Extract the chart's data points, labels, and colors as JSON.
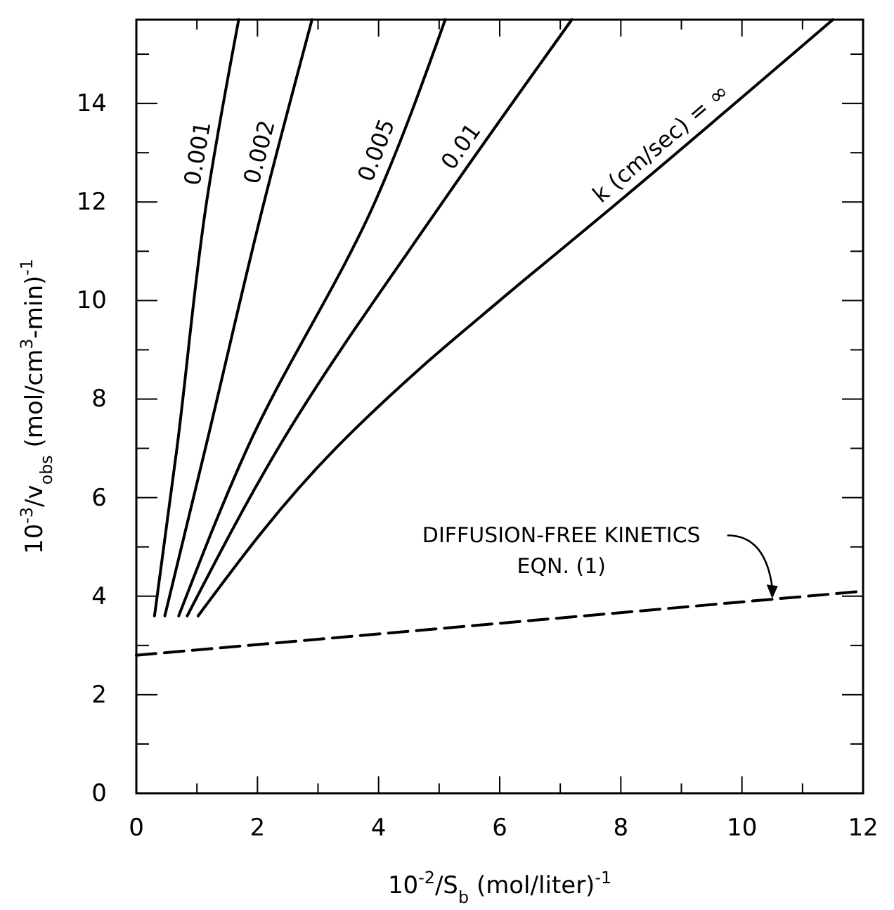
{
  "chart_data": {
    "type": "line",
    "xlabel": "10$^{-2}$/S$_{b}$ (mol/liter)$^{-1}$",
    "ylabel": "10$^{-3}$/v$_{obs}$ (mol/cm$^{3}$-min)$^{-1}$",
    "xlim": [
      0,
      12
    ],
    "ylim": [
      0,
      15.7
    ],
    "xticks": [
      0,
      {
        "value": 1,
        "label": null
      },
      2,
      {
        "value": 3,
        "label": null
      },
      4,
      {
        "value": 5,
        "label": null
      },
      6,
      {
        "value": 7,
        "label": null
      },
      8,
      {
        "value": 9,
        "label": null
      },
      10,
      {
        "value": 11,
        "label": null
      },
      12
    ],
    "yticks": [
      0,
      {
        "value": 1,
        "label": null
      },
      2,
      {
        "value": 3,
        "label": null
      },
      4,
      {
        "value": 5,
        "label": null
      },
      6,
      {
        "value": 7,
        "label": null
      },
      8,
      {
        "value": 9,
        "label": null
      },
      10,
      {
        "value": 11,
        "label": null
      },
      12,
      {
        "value": 13,
        "label": null
      },
      14,
      {
        "value": 15,
        "label": null
      }
    ],
    "grid": false,
    "marker": "none",
    "series": [
      {
        "name": "0.001",
        "color": "#000000",
        "line_style": "solid",
        "x": [
          0.3,
          0.67,
          1.16,
          1.69
        ],
        "values": [
          3.6,
          7,
          12,
          15.7
        ]
      },
      {
        "name": "0.002",
        "color": "#000000",
        "line_style": "solid",
        "x": [
          0.47,
          1.14,
          2.11,
          2.9
        ],
        "values": [
          3.6,
          7,
          12,
          15.7
        ]
      },
      {
        "name": "0.005",
        "color": "#000000",
        "line_style": "solid",
        "x": [
          0.7,
          1.83,
          3.94,
          5.1
        ],
        "values": [
          3.6,
          7,
          12,
          15.7
        ]
      },
      {
        "name": "0.01",
        "color": "#000000",
        "line_style": "solid",
        "x": [
          0.84,
          2.34,
          5.06,
          7.19
        ],
        "values": [
          3.6,
          7,
          12,
          15.7
        ]
      },
      {
        "name": "k (cm/sec) = ∞",
        "color": "#000000",
        "line_style": "solid",
        "x": [
          1.02,
          3.29,
          4.71,
          6.0,
          7.96,
          11.5
        ],
        "values": [
          3.6,
          7,
          8.65,
          10,
          12,
          15.7
        ]
      },
      {
        "color": "#000000",
        "line_style": "dashed",
        "x": [
          0,
          12
        ],
        "values": [
          2.8,
          4.1
        ]
      }
    ],
    "annotations": [
      {
        "text": "DIFFUSION-FREE KINETICS\nEQN. (1)",
        "x": 10.5,
        "y": 3.95
      }
    ]
  }
}
